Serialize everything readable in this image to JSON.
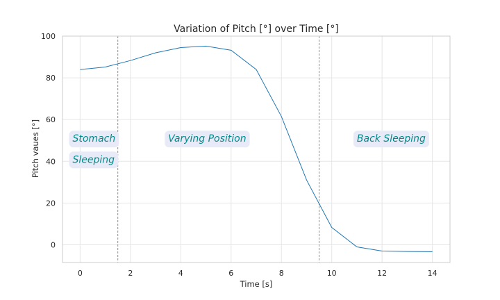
{
  "chart_data": {
    "type": "line",
    "title": "Variation of Pitch [°] over Time [°]",
    "xlabel": "Time [s]",
    "ylabel": "Pitch vaues [°]",
    "xlim": [
      -0.7,
      14.7
    ],
    "ylim": [
      -8.5,
      100
    ],
    "xticks": [
      0,
      2,
      4,
      6,
      8,
      10,
      12,
      14
    ],
    "yticks": [
      0,
      20,
      40,
      60,
      80,
      100
    ],
    "grid": true,
    "series": [
      {
        "color": "#1f77b4",
        "x": [
          0,
          1,
          2,
          3,
          4,
          5,
          6,
          7,
          8,
          9,
          10,
          11,
          12,
          13,
          14
        ],
        "y": [
          84,
          85.2,
          88.3,
          92,
          94.5,
          95.2,
          93.2,
          84,
          61.5,
          31,
          8.3,
          -1,
          -3,
          -3.2,
          -3.3
        ]
      }
    ],
    "vlines": [
      {
        "x": 1.5,
        "color": "#808080"
      },
      {
        "x": 9.5,
        "color": "#808080"
      }
    ],
    "annotations": [
      {
        "text": "Stomach",
        "x": -0.3,
        "y": 51
      },
      {
        "text": "Sleeping",
        "x": -0.3,
        "y": 41
      },
      {
        "text": "Varying Position",
        "x": 3.5,
        "y": 51
      },
      {
        "text": "Back Sleeping",
        "x": 11,
        "y": 51
      }
    ],
    "annotation_color": "#008b8b",
    "annotation_box_color": "#e8ebf7"
  }
}
